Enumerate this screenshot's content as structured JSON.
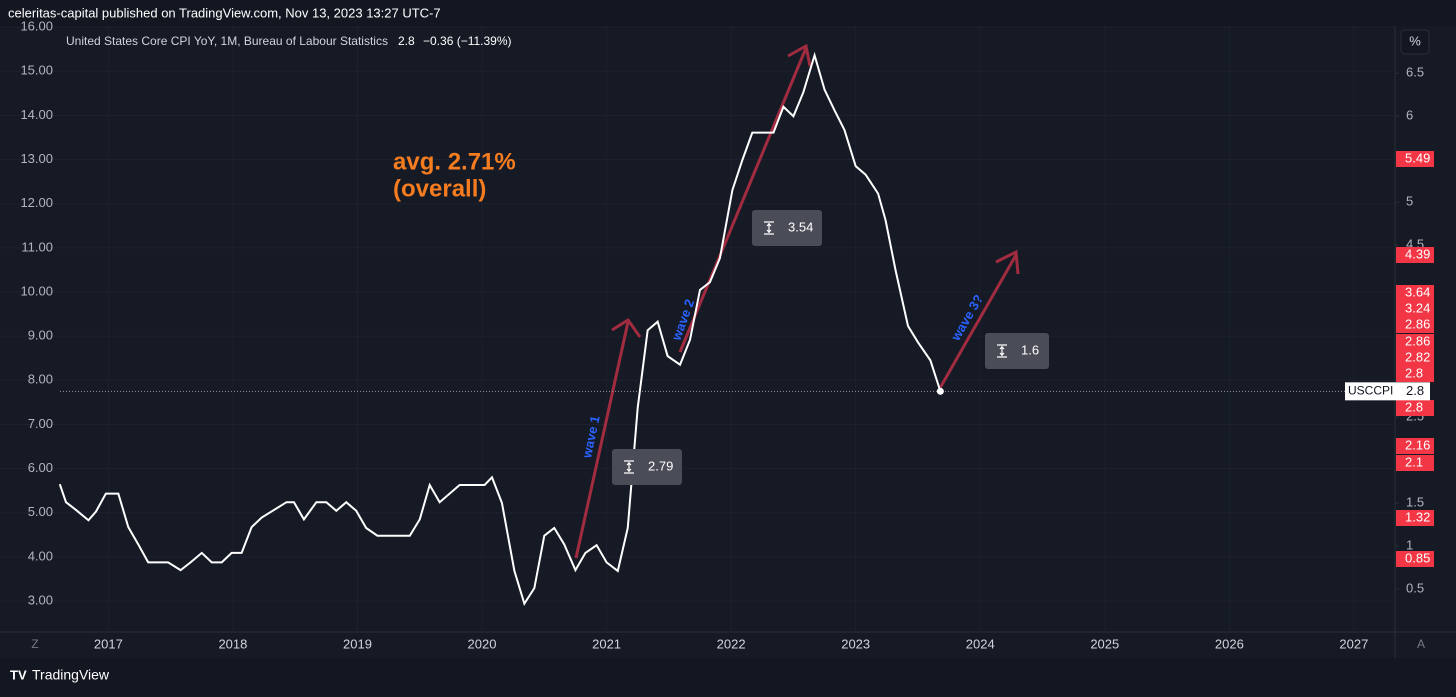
{
  "header": {
    "publisher": "celeritas-capital published on TradingView.com, Nov 13, 2023 13:27 UTC-7"
  },
  "chart_data": {
    "type": "line",
    "legend": {
      "title": "United States Core CPI YoY, 1M, Bureau of Labour Statistics",
      "change": "−0.36 (−11.39%)"
    },
    "xlim": [
      2016.13,
      2027.33
    ],
    "xticks": [
      2017,
      2018,
      2019,
      2020,
      2021,
      2022,
      2023,
      2024,
      2025,
      2026,
      2027
    ],
    "ylim": [
      2.3,
      16.16
    ],
    "yticks": [
      {
        "value": 3,
        "label": "3.00"
      },
      {
        "value": 4,
        "label": "4.00"
      },
      {
        "value": 5,
        "label": "5.00"
      },
      {
        "value": 6,
        "label": "6.00"
      },
      {
        "value": 7,
        "label": "7.00"
      },
      {
        "value": 8,
        "label": "8.00"
      },
      {
        "value": 9,
        "label": "9.00"
      },
      {
        "value": 10,
        "label": "10.00"
      },
      {
        "value": 11,
        "label": "11.00"
      },
      {
        "value": 12,
        "label": "12.00"
      },
      {
        "value": 13,
        "label": "13.00"
      },
      {
        "value": 14,
        "label": "14.00"
      },
      {
        "value": 15,
        "label": "15.00"
      },
      {
        "value": 16,
        "label": "16.00"
      }
    ],
    "y2lim": [
      0,
      7.12
    ],
    "y2ticks": [
      0.5,
      1,
      1.5,
      2.5,
      4.5,
      5,
      6,
      6.5
    ],
    "grid": true,
    "series": [
      {
        "name": "USCCPI",
        "color": "#ffffff",
        "axis": "y2",
        "x": [
          2016.61,
          2016.66,
          2016.74,
          2016.84,
          2016.9,
          2016.98,
          2017.08,
          2017.16,
          2017.24,
          2017.32,
          2017.48,
          2017.58,
          2017.66,
          2017.75,
          2017.83,
          2017.91,
          2017.99,
          2018.07,
          2018.15,
          2018.23,
          2018.33,
          2018.43,
          2018.49,
          2018.57,
          2018.67,
          2018.75,
          2018.83,
          2018.91,
          2018.99,
          2019.07,
          2019.16,
          2019.42,
          2019.5,
          2019.58,
          2019.66,
          2019.74,
          2019.82,
          2020.02,
          2020.08,
          2020.16,
          2020.26,
          2020.34,
          2020.42,
          2020.5,
          2020.58,
          2020.66,
          2020.75,
          2020.83,
          2020.92,
          2021.0,
          2021.09,
          2021.17,
          2021.25,
          2021.33,
          2021.41,
          2021.49,
          2021.59,
          2021.67,
          2021.75,
          2021.83,
          2021.91,
          2022.01,
          2022.09,
          2022.17,
          2022.34,
          2022.42,
          2022.5,
          2022.58,
          2022.67,
          2022.75,
          2022.83,
          2022.91,
          2023.0,
          2023.08,
          2023.18,
          2023.24,
          2023.32,
          2023.42,
          2023.5,
          2023.6,
          2023.68
        ],
        "values": [
          1.72,
          1.51,
          1.42,
          1.3,
          1.4,
          1.61,
          1.61,
          1.22,
          1.02,
          0.81,
          0.81,
          0.72,
          0.81,
          0.92,
          0.81,
          0.81,
          0.92,
          0.92,
          1.22,
          1.33,
          1.42,
          1.51,
          1.51,
          1.31,
          1.51,
          1.51,
          1.41,
          1.51,
          1.41,
          1.21,
          1.12,
          1.12,
          1.31,
          1.71,
          1.51,
          1.61,
          1.71,
          1.71,
          1.8,
          1.5,
          0.71,
          0.33,
          0.51,
          1.12,
          1.21,
          1.02,
          0.72,
          0.92,
          1.01,
          0.81,
          0.71,
          1.21,
          2.61,
          3.51,
          3.61,
          3.21,
          3.11,
          3.4,
          3.98,
          4.07,
          4.35,
          5.14,
          5.49,
          5.81,
          5.81,
          6.11,
          6.0,
          6.28,
          6.71,
          6.31,
          6.07,
          5.84,
          5.42,
          5.32,
          5.1,
          4.79,
          4.21,
          3.56,
          3.37,
          3.16,
          2.8
        ]
      }
    ],
    "price_labels": [
      5.49,
      4.39,
      3.64,
      3.24,
      2.86,
      2.86,
      2.82,
      2.8,
      2.8,
      2.16,
      2.1,
      1.32,
      0.85
    ],
    "annotations": {
      "avg_line1": "avg. 2.71%",
      "avg_line2": "(overall)",
      "wave1": "wave 1",
      "wave2": "wave 2",
      "wave3": "wave 3?"
    },
    "measures": [
      2.79,
      3.54,
      1.6
    ]
  },
  "controls": {
    "percent": "%",
    "zoom": "Z",
    "auto": "A"
  },
  "footer": {
    "brand": "TradingView"
  }
}
